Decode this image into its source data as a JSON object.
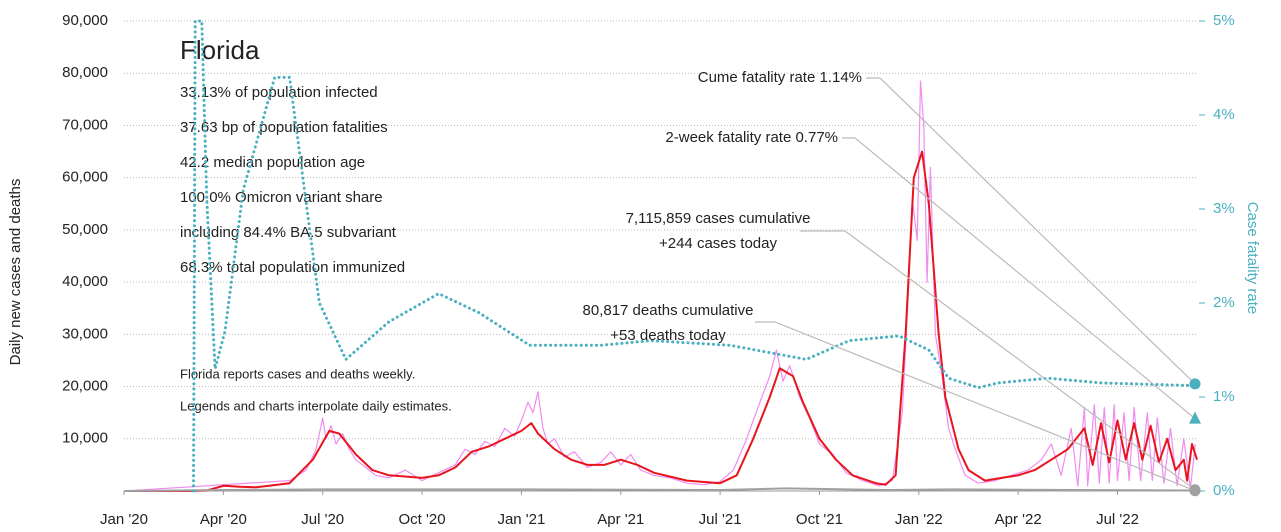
{
  "chart_data": {
    "type": "line",
    "title": "Florida",
    "stats": [
      "33.13% of population infected",
      "37.63 bp of population fatalities",
      "42.2 median population age",
      "100.0% Omicron variant share",
      "including 84.4% BA.5 subvariant",
      "68.3% total population immunized"
    ],
    "notes": [
      "Florida reports cases and deaths weekly.",
      "Legends and charts interpolate daily estimates."
    ],
    "ylabel": "Daily new cases and deaths",
    "y2label": "Case fatality rate",
    "xlim": [
      0,
      32.4
    ],
    "xticks": [
      {
        "value": 0,
        "label": "Jan '20"
      },
      {
        "value": 3,
        "label": "Apr '20"
      },
      {
        "value": 6,
        "label": "Jul '20"
      },
      {
        "value": 9,
        "label": "Oct '20"
      },
      {
        "value": 12,
        "label": "Jan '21"
      },
      {
        "value": 15,
        "label": "Apr '21"
      },
      {
        "value": 18,
        "label": "Jul '21"
      },
      {
        "value": 21,
        "label": "Oct '21"
      },
      {
        "value": 24,
        "label": "Jan '22"
      },
      {
        "value": 27,
        "label": "Apr '22"
      },
      {
        "value": 30,
        "label": "Jul '22"
      }
    ],
    "ylim": [
      0,
      90000
    ],
    "yticks": [
      {
        "value": 10000,
        "label": "10,000"
      },
      {
        "value": 20000,
        "label": "20,000"
      },
      {
        "value": 30000,
        "label": "30,000"
      },
      {
        "value": 40000,
        "label": "40,000"
      },
      {
        "value": 50000,
        "label": "50,000"
      },
      {
        "value": 60000,
        "label": "60,000"
      },
      {
        "value": 70000,
        "label": "70,000"
      },
      {
        "value": 80000,
        "label": "80,000"
      },
      {
        "value": 90000,
        "label": "90,000"
      }
    ],
    "y2lim": [
      0,
      5
    ],
    "y2ticks": [
      {
        "value": 0,
        "label": "0%"
      },
      {
        "value": 1,
        "label": "1%"
      },
      {
        "value": 2,
        "label": "2%"
      },
      {
        "value": 3,
        "label": "3%"
      },
      {
        "value": 4,
        "label": "4%"
      },
      {
        "value": 5,
        "label": "5%"
      }
    ],
    "grid": true,
    "series": [
      {
        "color": "#f08cf0",
        "width": 1.2,
        "x": [
          0,
          5,
          5.5,
          5.8,
          6.0,
          6.1,
          6.25,
          6.4,
          6.6,
          6.8,
          7,
          7.3,
          7.6,
          8,
          8.5,
          9,
          9.5,
          10,
          10.3,
          10.6,
          10.9,
          11.2,
          11.5,
          11.8,
          12,
          12.2,
          12.35,
          12.5,
          12.65,
          12.8,
          13,
          13.3,
          13.6,
          14,
          14.4,
          14.7,
          15,
          15.3,
          15.6,
          16,
          16.5,
          17,
          17.5,
          18,
          18.4,
          18.8,
          19.2,
          19.5,
          19.7,
          19.9,
          20.1,
          20.4,
          20.7,
          21,
          21.4,
          21.8,
          22.3,
          22.8,
          23.2,
          23.5,
          23.7,
          23.8,
          23.95,
          24.05,
          24.15,
          24.25,
          24.35,
          24.5,
          24.7,
          24.9,
          25.1,
          25.4,
          25.8,
          26.3,
          26.8,
          27.3,
          27.7,
          28,
          28.3,
          28.6,
          28.8,
          29,
          29.1,
          29.3,
          29.45,
          29.6,
          29.75,
          29.9,
          30,
          30.2,
          30.35,
          30.5,
          30.7,
          30.9,
          31.05,
          31.2,
          31.4,
          31.6,
          31.8,
          32,
          32.2,
          32.35
        ],
        "values": [
          0,
          2000,
          4000,
          8000,
          14000,
          10000,
          12500,
          9000,
          11000,
          8000,
          6000,
          4500,
          3000,
          2500,
          4000,
          2000,
          3500,
          5000,
          8000,
          7000,
          9500,
          8500,
          12000,
          10500,
          13500,
          17000,
          15000,
          19000,
          12000,
          9000,
          10000,
          6500,
          7500,
          4500,
          5500,
          7500,
          5000,
          7000,
          4000,
          3000,
          2500,
          1500,
          1200,
          1800,
          4000,
          10000,
          17000,
          22000,
          27000,
          21000,
          24000,
          18000,
          14000,
          9000,
          7000,
          3500,
          2000,
          1000,
          2000,
          15000,
          40000,
          56000,
          48000,
          78500,
          70000,
          40000,
          62000,
          30000,
          22000,
          12000,
          8000,
          3000,
          1500,
          2000,
          3000,
          4000,
          6000,
          9000,
          3000,
          12000,
          1000,
          16000,
          1000,
          16500,
          1500,
          16000,
          1500,
          16500,
          2000,
          15000,
          2000,
          16000,
          2000,
          15000,
          2000,
          14000,
          1500,
          12000,
          1000,
          10000,
          500,
          9000
        ]
      },
      {
        "color": "#e8141e",
        "width": 2,
        "x": [
          0,
          2,
          2.5,
          3,
          3.5,
          4,
          5,
          5.7,
          6.2,
          6.5,
          7,
          7.5,
          8,
          9,
          9.5,
          10,
          10.5,
          11,
          11.5,
          12,
          12.3,
          12.5,
          13,
          13.5,
          14,
          14.5,
          15,
          15.5,
          16,
          17,
          18,
          18.5,
          19,
          19.5,
          19.8,
          20.2,
          20.5,
          21,
          21.5,
          22,
          22.7,
          23,
          23.3,
          23.6,
          23.85,
          24.1,
          24.3,
          24.6,
          24.8,
          25.2,
          25.5,
          26,
          26.5,
          27,
          27.5,
          28,
          28.5,
          29,
          29.25,
          29.5,
          29.75,
          30,
          30.25,
          30.5,
          30.75,
          31,
          31.25,
          31.5,
          31.75,
          32,
          32.1,
          32.25,
          32.4
        ],
        "values": [
          0,
          0,
          100,
          1000,
          800,
          700,
          1500,
          6000,
          11500,
          11000,
          7000,
          4000,
          3000,
          2500,
          3000,
          4500,
          7500,
          8500,
          10000,
          11500,
          13000,
          11000,
          8000,
          6000,
          5000,
          5000,
          6000,
          5000,
          3500,
          2000,
          1500,
          3000,
          10000,
          18000,
          23500,
          22000,
          17000,
          10000,
          6000,
          3000,
          1500,
          1200,
          3000,
          30000,
          60000,
          65000,
          55000,
          30000,
          18000,
          8000,
          4000,
          2000,
          2500,
          3000,
          4000,
          6000,
          8000,
          12000,
          5000,
          13000,
          5500,
          13500,
          6000,
          13000,
          6000,
          12500,
          5500,
          10000,
          4000,
          6000,
          2000,
          9000,
          6000
        ]
      },
      {
        "color": "#a0a0a0",
        "width": 2,
        "x": [
          0,
          3,
          6,
          12,
          18,
          20,
          23,
          25,
          32.4
        ],
        "values": [
          0,
          200,
          300,
          300,
          200,
          500,
          200,
          300,
          100
        ]
      },
      {
        "color": "#4ab0c0",
        "width": 3,
        "axis": "y2",
        "dotted": true,
        "x": [
          2.1,
          2.15,
          2.35,
          2.5,
          2.75,
          3.05,
          3.6,
          4.55,
          5.0,
          5.9,
          6.7,
          8,
          9.5,
          10.7,
          12.25,
          14.4,
          15.9,
          18.3,
          20.6,
          21.9,
          23.4,
          24.3,
          24.9,
          25.8,
          26.4,
          27.9,
          29.5,
          32.4
        ],
        "values": [
          0,
          5,
          5,
          3.1,
          1.3,
          1.7,
          3.2,
          4.4,
          4.4,
          2,
          1.4,
          1.8,
          2.1,
          1.9,
          1.55,
          1.55,
          1.6,
          1.55,
          1.4,
          1.6,
          1.65,
          1.5,
          1.2,
          1.1,
          1.15,
          1.2,
          1.15,
          1.12
        ]
      }
    ],
    "annotations": [
      {
        "lines": [
          "Cume fatality rate 1.14%"
        ],
        "value": 1.14,
        "axis": "y2",
        "marker": "circle",
        "color": "#4ab0c0"
      },
      {
        "lines": [
          "2-week fatality rate 0.77%"
        ],
        "value": 0.77,
        "axis": "y2",
        "marker": "triangle",
        "color": "#4ab0c0"
      },
      {
        "lines": [
          "7,115,859 cases cumulative",
          "+244 cases today"
        ],
        "value": 244,
        "axis": "y",
        "marker": "circle",
        "color": "#a0a0a0"
      },
      {
        "lines": [
          "80,817 deaths cumulative",
          "+53 deaths today"
        ],
        "value": 53,
        "axis": "y",
        "marker": "circle",
        "color": "#a0a0a0"
      }
    ]
  }
}
